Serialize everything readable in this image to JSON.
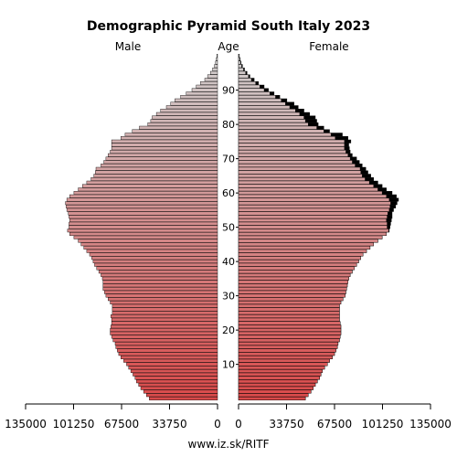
{
  "chart_data": {
    "type": "bar",
    "orientation": "horizontal-pyramid",
    "title": "Demographic Pyramid South Italy 2023",
    "left_label": "Male",
    "center_label": "Age",
    "right_label": "Female",
    "source": "www.iz.sk/RITF",
    "x_ticks_left": [
      "135000",
      "101250",
      "67500",
      "33750",
      "0"
    ],
    "x_ticks_right": [
      "0",
      "33750",
      "67500",
      "101250",
      "135000"
    ],
    "x_tick_values": [
      135000,
      101250,
      67500,
      33750,
      0
    ],
    "age_ticks": [
      "10",
      "20",
      "30",
      "40",
      "50",
      "60",
      "70",
      "80",
      "90"
    ],
    "age_tick_values": [
      10,
      20,
      30,
      40,
      50,
      60,
      70,
      80,
      90
    ],
    "xlim": [
      0,
      135000
    ],
    "ages": [
      0,
      1,
      2,
      3,
      4,
      5,
      6,
      7,
      8,
      9,
      10,
      11,
      12,
      13,
      14,
      15,
      16,
      17,
      18,
      19,
      20,
      21,
      22,
      23,
      24,
      25,
      26,
      27,
      28,
      29,
      30,
      31,
      32,
      33,
      34,
      35,
      36,
      37,
      38,
      39,
      40,
      41,
      42,
      43,
      44,
      45,
      46,
      47,
      48,
      49,
      50,
      51,
      52,
      53,
      54,
      55,
      56,
      57,
      58,
      59,
      60,
      61,
      62,
      63,
      64,
      65,
      66,
      67,
      68,
      69,
      70,
      71,
      72,
      73,
      74,
      75,
      76,
      77,
      78,
      79,
      80,
      81,
      82,
      83,
      84,
      85,
      86,
      87,
      88,
      89,
      90,
      91,
      92,
      93,
      94,
      95,
      96,
      97,
      98,
      99,
      100
    ],
    "series": [
      {
        "name": "Male",
        "values": [
          48000,
          50000,
          52000,
          54000,
          55500,
          57000,
          58000,
          59500,
          61000,
          62500,
          64000,
          66000,
          68000,
          69500,
          70500,
          71500,
          72000,
          73500,
          74500,
          75500,
          75500,
          75000,
          74500,
          74500,
          75000,
          74000,
          74000,
          74000,
          75500,
          77000,
          78500,
          79500,
          80500,
          80500,
          80500,
          81000,
          82000,
          83500,
          85000,
          86500,
          87500,
          88500,
          90000,
          92000,
          94000,
          96000,
          98000,
          101000,
          104000,
          105500,
          104500,
          104500,
          104000,
          104500,
          105000,
          106000,
          106500,
          107000,
          106000,
          104000,
          101000,
          98000,
          95000,
          92000,
          89000,
          87000,
          86000,
          85500,
          82000,
          80000,
          78500,
          77000,
          75500,
          74500,
          74500,
          74500,
          68000,
          65000,
          60000,
          55000,
          49000,
          47000,
          46000,
          43000,
          40000,
          36000,
          33000,
          30000,
          26000,
          22000,
          18000,
          15000,
          12000,
          9000,
          7000,
          5000,
          3500,
          2200,
          1400,
          900,
          500
        ]
      },
      {
        "name": "Female",
        "values": [
          47000,
          49000,
          51000,
          52500,
          54000,
          55500,
          57000,
          58000,
          59000,
          60500,
          62500,
          64000,
          66000,
          67500,
          68500,
          69500,
          70000,
          71000,
          71500,
          72000,
          72000,
          72000,
          71500,
          71000,
          71000,
          71000,
          71000,
          71000,
          72000,
          73500,
          75000,
          75500,
          76000,
          76500,
          77000,
          77500,
          78500,
          80000,
          81500,
          83000,
          84500,
          86000,
          87500,
          90000,
          92500,
          95000,
          98000,
          101000,
          104000,
          106000,
          106500,
          107000,
          107500,
          108000,
          108000,
          109000,
          110500,
          111500,
          112500,
          111000,
          108000,
          104000,
          101000,
          98000,
          95000,
          93000,
          91000,
          89500,
          87000,
          85000,
          83000,
          80000,
          78500,
          78000,
          77500,
          79000,
          77000,
          73000,
          64000,
          60000,
          56000,
          55000,
          54000,
          50000,
          46000,
          42000,
          39000,
          34000,
          29000,
          25000,
          21000,
          18000,
          14000,
          11000,
          8000,
          6000,
          4200,
          2800,
          1800,
          1100,
          600
        ]
      }
    ],
    "overlay_values_female": [
      47000,
      49000,
      51000,
      52500,
      54000,
      55500,
      57000,
      58000,
      59000,
      60500,
      62500,
      64000,
      66000,
      67500,
      68500,
      69500,
      70000,
      71000,
      71500,
      72000,
      72000,
      72000,
      71500,
      71000,
      71000,
      71000,
      71000,
      71000,
      72000,
      73500,
      75000,
      75500,
      76000,
      76500,
      77000,
      77500,
      78500,
      80000,
      81500,
      83000,
      84500,
      86000,
      87500,
      90000,
      92500,
      95000,
      98000,
      101000,
      104000,
      105500,
      104500,
      104500,
      104000,
      104500,
      105000,
      106000,
      106500,
      107000,
      106000,
      104000,
      101000,
      98000,
      95000,
      92000,
      89000,
      87000,
      86000,
      85500,
      82000,
      80000,
      78500,
      77000,
      75500,
      74500,
      74500,
      74500,
      68000,
      65000,
      60000,
      55000,
      49000,
      47000,
      46000,
      43000,
      40000,
      36000,
      33000,
      30000,
      26000,
      22000,
      18000,
      15000,
      12000,
      9000,
      7000,
      5000,
      3500,
      2200,
      1400,
      900,
      500
    ]
  },
  "colors": {
    "young": "#d94a4a",
    "old": "#cfcfcf",
    "excess": "#000000",
    "outline": "#000000"
  }
}
